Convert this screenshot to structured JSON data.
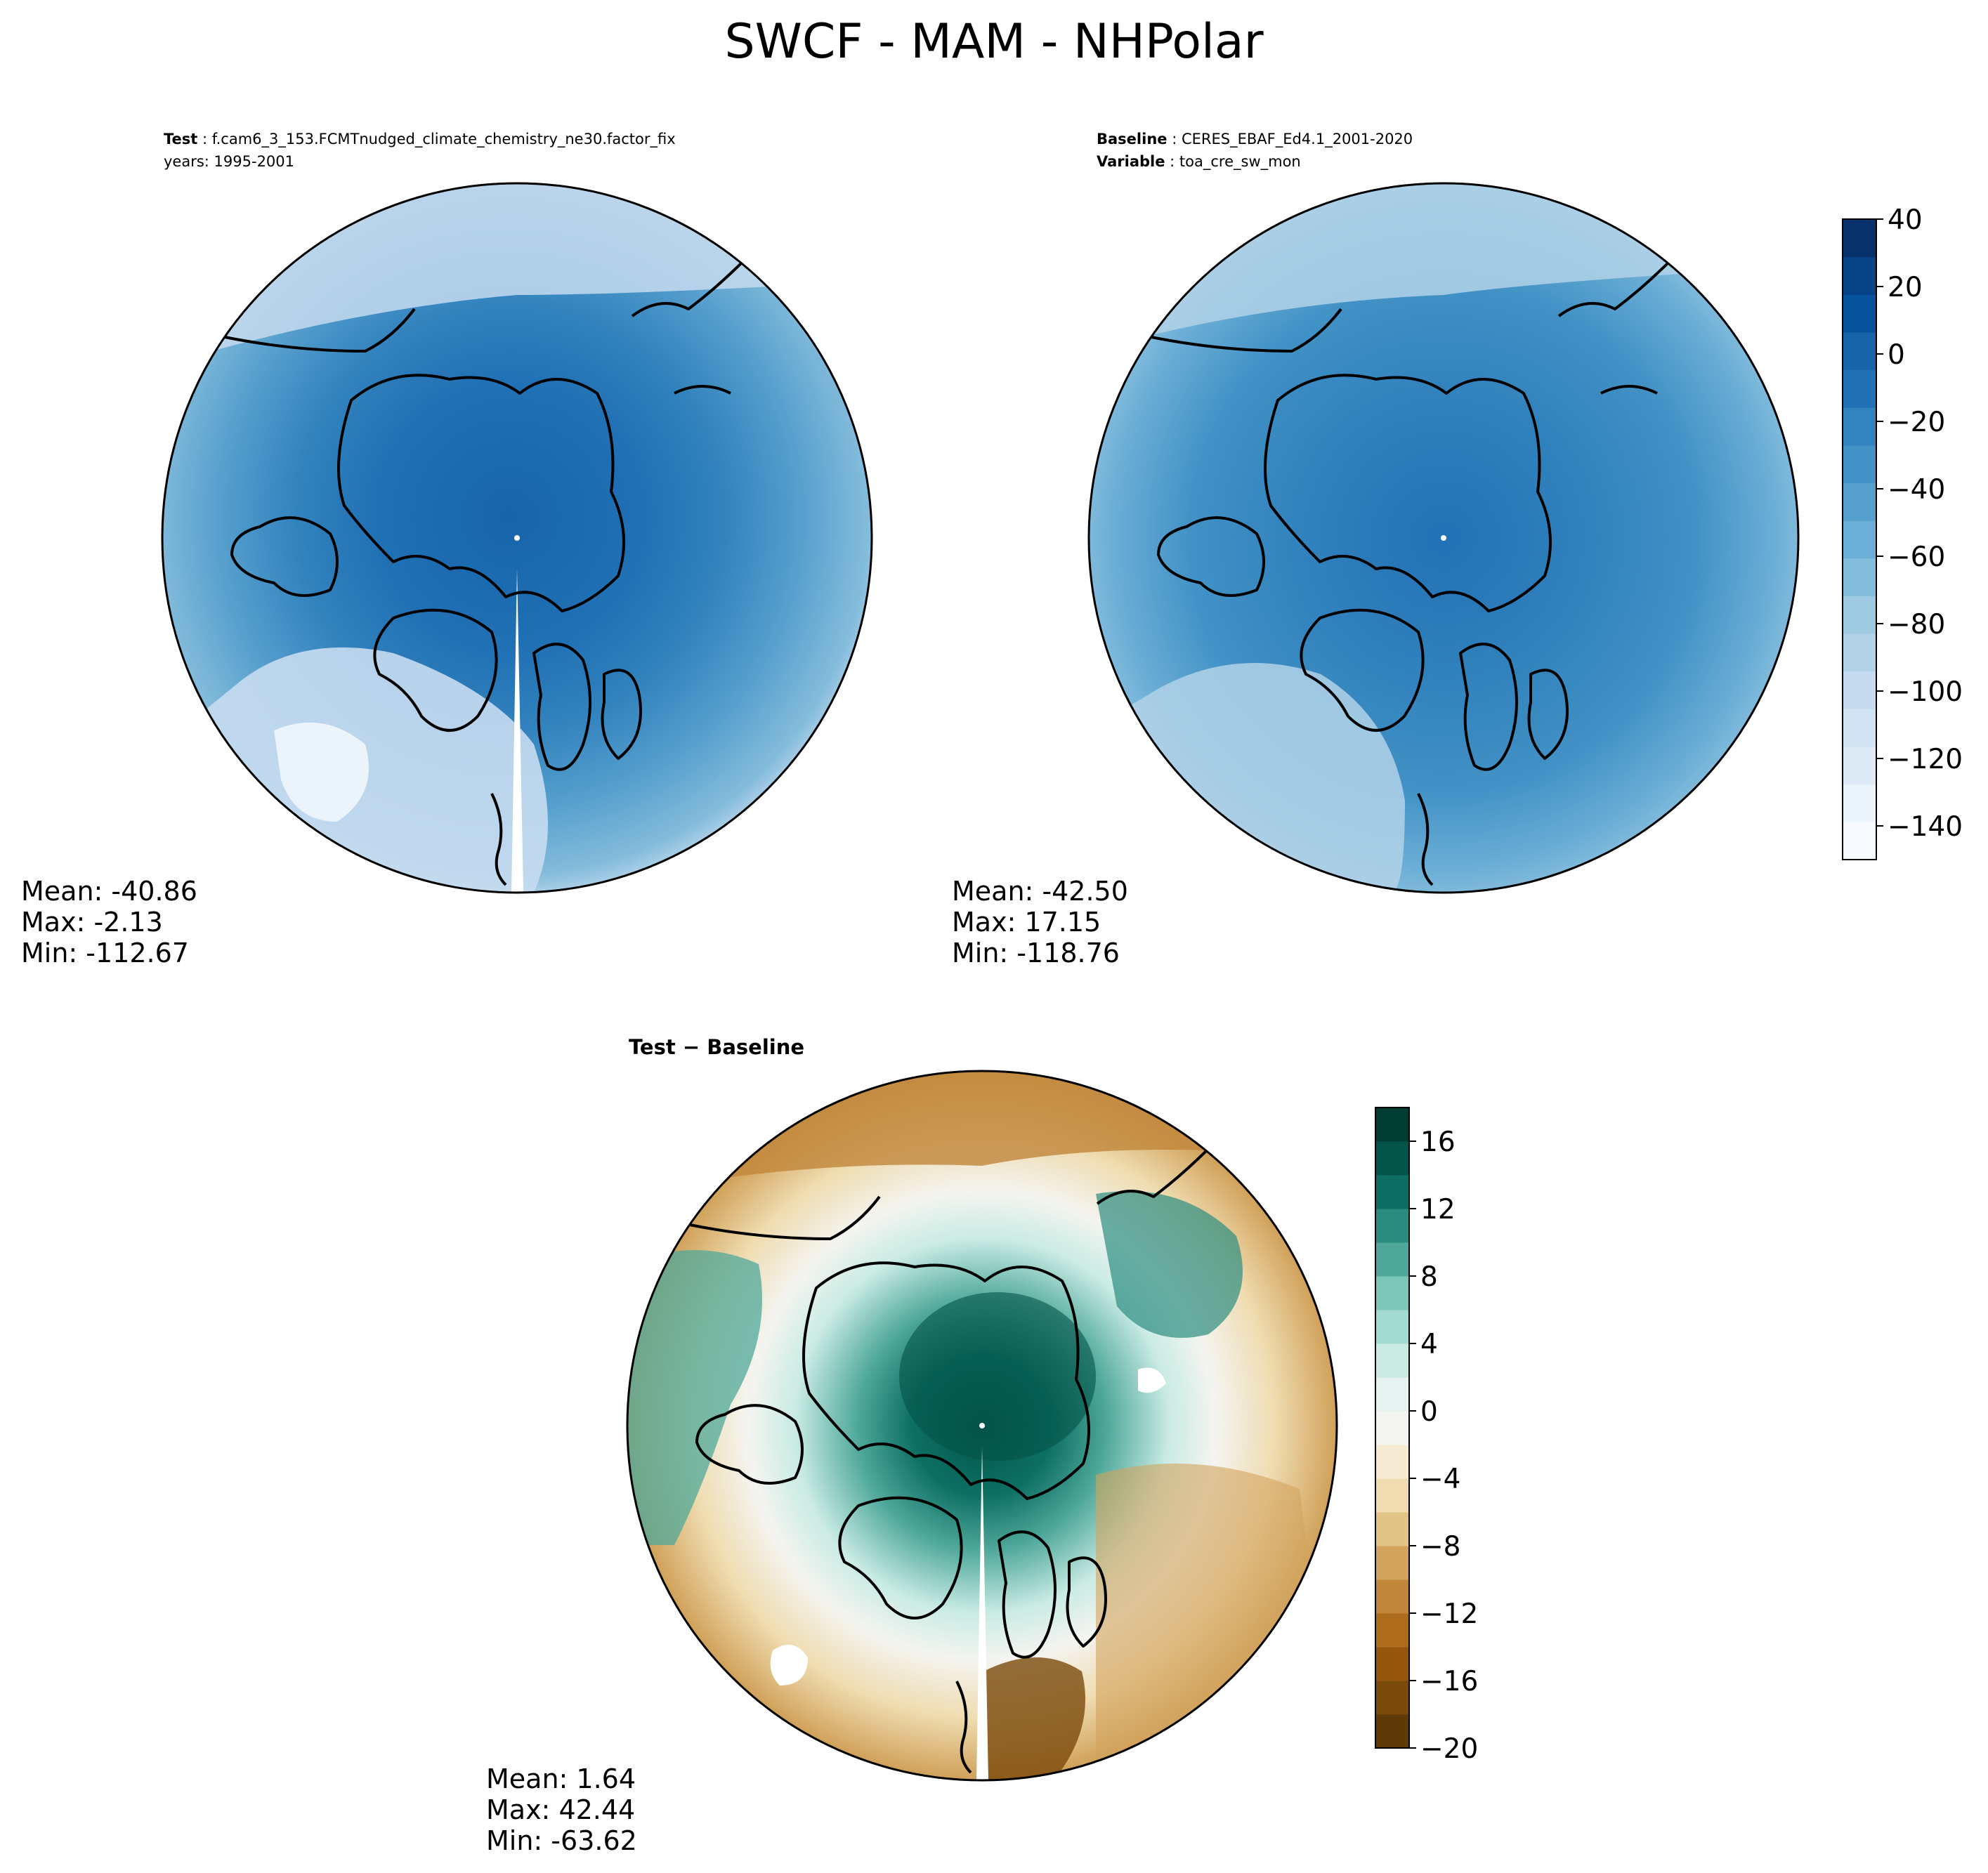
{
  "figure": {
    "title": "SWCF - MAM - NHPolar"
  },
  "panels": {
    "test": {
      "label_key": "Test",
      "label_value": "f.cam6_3_153.FCMTnudged_climate_chemistry_ne30.factor_fix",
      "years": "years: 1995-2001",
      "stats": {
        "mean": "Mean: -40.86",
        "max": "Max: -2.13",
        "min": "Min: -112.67"
      }
    },
    "baseline": {
      "label_key": "Baseline",
      "label_value": "CERES_EBAF_Ed4.1_2001-2020",
      "variable_key": "Variable",
      "variable_value": "toa_cre_sw_mon",
      "stats": {
        "mean": "Mean: -42.50",
        "max": "Max: 17.15",
        "min": "Min: -118.76"
      }
    },
    "diff": {
      "title": "Test − Baseline",
      "stats": {
        "mean": "Mean:  1.64",
        "max": "Max: 42.44",
        "min": "Min: -63.62"
      }
    }
  },
  "colorbar_main": {
    "min": -150,
    "max": 40,
    "tick_values": [
      40,
      20,
      0,
      -20,
      -40,
      -60,
      -80,
      -100,
      -120,
      -140
    ],
    "tick_labels": [
      "40",
      "20",
      "0",
      "−20",
      "−40",
      "−60",
      "−80",
      "−100",
      "−120",
      "−140"
    ],
    "colormap": "Blues",
    "colors": [
      "#f7fbff",
      "#ebf3fb",
      "#deebf7",
      "#d2e3f3",
      "#c6dbef",
      "#b2d2e8",
      "#9ecae1",
      "#84bcdb",
      "#6baed6",
      "#57a0ce",
      "#4292c6",
      "#3383be",
      "#2171b5",
      "#1764ab",
      "#08519c",
      "#084287",
      "#08306b"
    ]
  },
  "colorbar_diff": {
    "min": -20,
    "max": 18,
    "tick_values": [
      16,
      12,
      8,
      4,
      0,
      -4,
      -8,
      -12,
      -16,
      -20
    ],
    "tick_labels": [
      "16",
      "12",
      "8",
      "4",
      "0",
      "−4",
      "−8",
      "−12",
      "−16",
      "−20"
    ],
    "colormap": "BrBG",
    "colors": [
      "#5e3a08",
      "#7a4a0b",
      "#95570e",
      "#ad6b1c",
      "#c1863a",
      "#d2a45e",
      "#e3c487",
      "#efdcb0",
      "#f6ead3",
      "#f4f4f0",
      "#e6f2f0",
      "#c9ebe4",
      "#a3dccf",
      "#7cc6b7",
      "#4fa89a",
      "#2b8d80",
      "#0d6f63",
      "#035448",
      "#003c30"
    ]
  },
  "map_colors": {
    "test_field": {
      "outer": "#d2e3f3",
      "ring": "#6baed6",
      "inner": "#3383be",
      "pole": "#1764ab",
      "low_band": "#d2e3f3",
      "highlight": "#ebf3fb"
    },
    "baseline_field": {
      "outer": "#9ecae1",
      "ring": "#57a0ce",
      "inner": "#3383be",
      "pole": "#1764ab",
      "low_band": "#b2d2e8"
    },
    "diff_field": {
      "outer_brown": "#d2a45e",
      "ring_white": "#f4f4f0",
      "teal_mid": "#7cc6b7",
      "teal_dark": "#0d6f63",
      "teal_core": "#035448",
      "brown_dark": "#95570e"
    },
    "coastline": "#000000",
    "border": "#000000"
  }
}
